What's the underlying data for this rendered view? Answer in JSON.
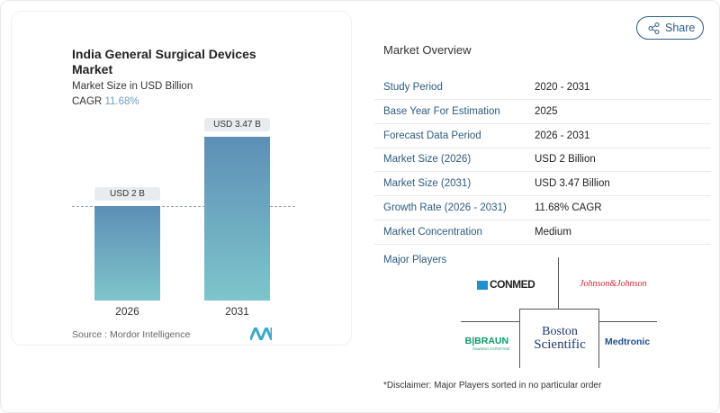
{
  "chart_data": {
    "type": "bar",
    "title": "India General Surgical Devices Market",
    "subtitle": "Market Size in USD Billion",
    "cagr_label": "CAGR",
    "cagr_value": "11.68%",
    "categories": [
      "2026",
      "2031"
    ],
    "values": [
      2,
      3.47
    ],
    "data_labels": [
      "USD 2 B",
      "USD 3.47 B"
    ],
    "colors": [
      "#5d8fb6",
      "#7ec5cb"
    ],
    "grid": false,
    "reference_line": "dashed at 2026 value",
    "source": "Source :  Mordor Intelligence"
  },
  "share_label": "Share",
  "overview": {
    "title": "Market Overview",
    "rows": [
      {
        "k": "Study Period",
        "v": "2020 - 2031"
      },
      {
        "k": "Base Year For Estimation",
        "v": "2025"
      },
      {
        "k": "Forecast Data Period",
        "v": "2026 - 2031"
      },
      {
        "k": "Market Size (2026)",
        "v": "USD 2 Billion"
      },
      {
        "k": "Market Size (2031)",
        "v": "USD 3.47 Billion"
      },
      {
        "k": "Growth Rate (2026 - 2031)",
        "v": "11.68% CAGR"
      },
      {
        "k": "Market Concentration",
        "v": "Medium"
      }
    ],
    "players_label": "Major Players",
    "players": [
      "CONMED",
      "Johnson&Johnson",
      "B|BRAUN",
      "SHARING EXPERTISE",
      "Boston",
      "Scientific",
      "Medtronic"
    ],
    "disclaimer": "*Disclaimer: Major Players sorted in no particular order"
  }
}
